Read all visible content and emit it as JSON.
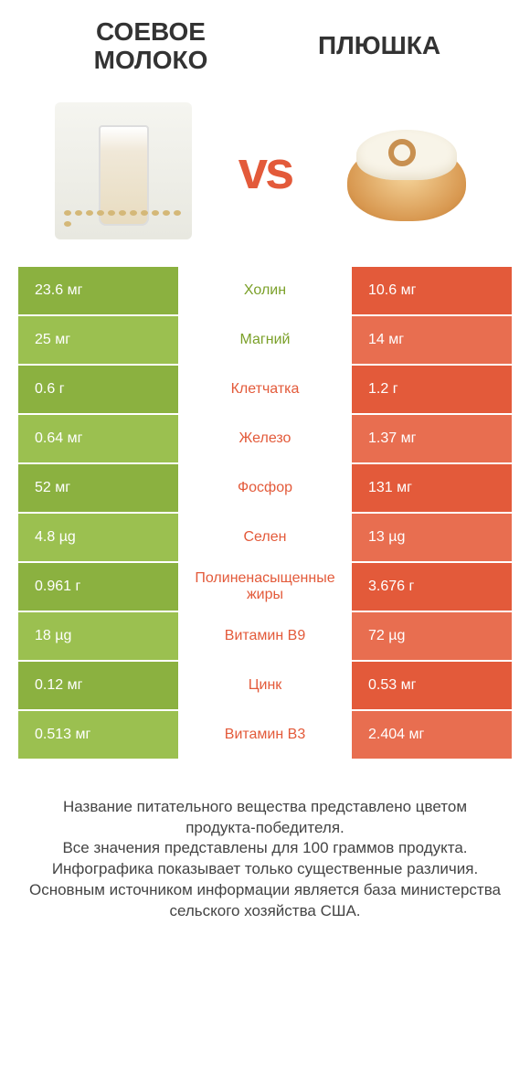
{
  "colors": {
    "green_dark": "#8bb140",
    "green_light": "#9bc050",
    "orange_dark": "#e35a3a",
    "orange_light": "#e86e50",
    "text_green": "#7ba029",
    "text_orange": "#e35a3a",
    "heading": "#333333",
    "footer": "#444444"
  },
  "header": {
    "left_line1": "Соевое",
    "left_line2": "молоко",
    "right": "Плюшка"
  },
  "vs_label": "vs",
  "rows": [
    {
      "left": "23.6 мг",
      "mid": "Холин",
      "right": "10.6 мг",
      "winner": "left"
    },
    {
      "left": "25 мг",
      "mid": "Магний",
      "right": "14 мг",
      "winner": "left"
    },
    {
      "left": "0.6 г",
      "mid": "Клетчатка",
      "right": "1.2 г",
      "winner": "right"
    },
    {
      "left": "0.64 мг",
      "mid": "Железо",
      "right": "1.37 мг",
      "winner": "right"
    },
    {
      "left": "52 мг",
      "mid": "Фосфор",
      "right": "131 мг",
      "winner": "right"
    },
    {
      "left": "4.8 µg",
      "mid": "Селен",
      "right": "13 µg",
      "winner": "right"
    },
    {
      "left": "0.961 г",
      "mid": "Полиненасыщенные жиры",
      "right": "3.676 г",
      "winner": "right"
    },
    {
      "left": "18 µg",
      "mid": "Витамин B9",
      "right": "72 µg",
      "winner": "right"
    },
    {
      "left": "0.12 мг",
      "mid": "Цинк",
      "right": "0.53 мг",
      "winner": "right"
    },
    {
      "left": "0.513 мг",
      "mid": "Витамин B3",
      "right": "2.404 мг",
      "winner": "right"
    }
  ],
  "footer_lines": [
    "Название питательного вещества представлено цветом продукта-победителя.",
    "Все значения представлены для 100 граммов продукта.",
    "Инфографика показывает только существенные различия.",
    "Основным источником информации является база министерства сельского хозяйства США."
  ]
}
